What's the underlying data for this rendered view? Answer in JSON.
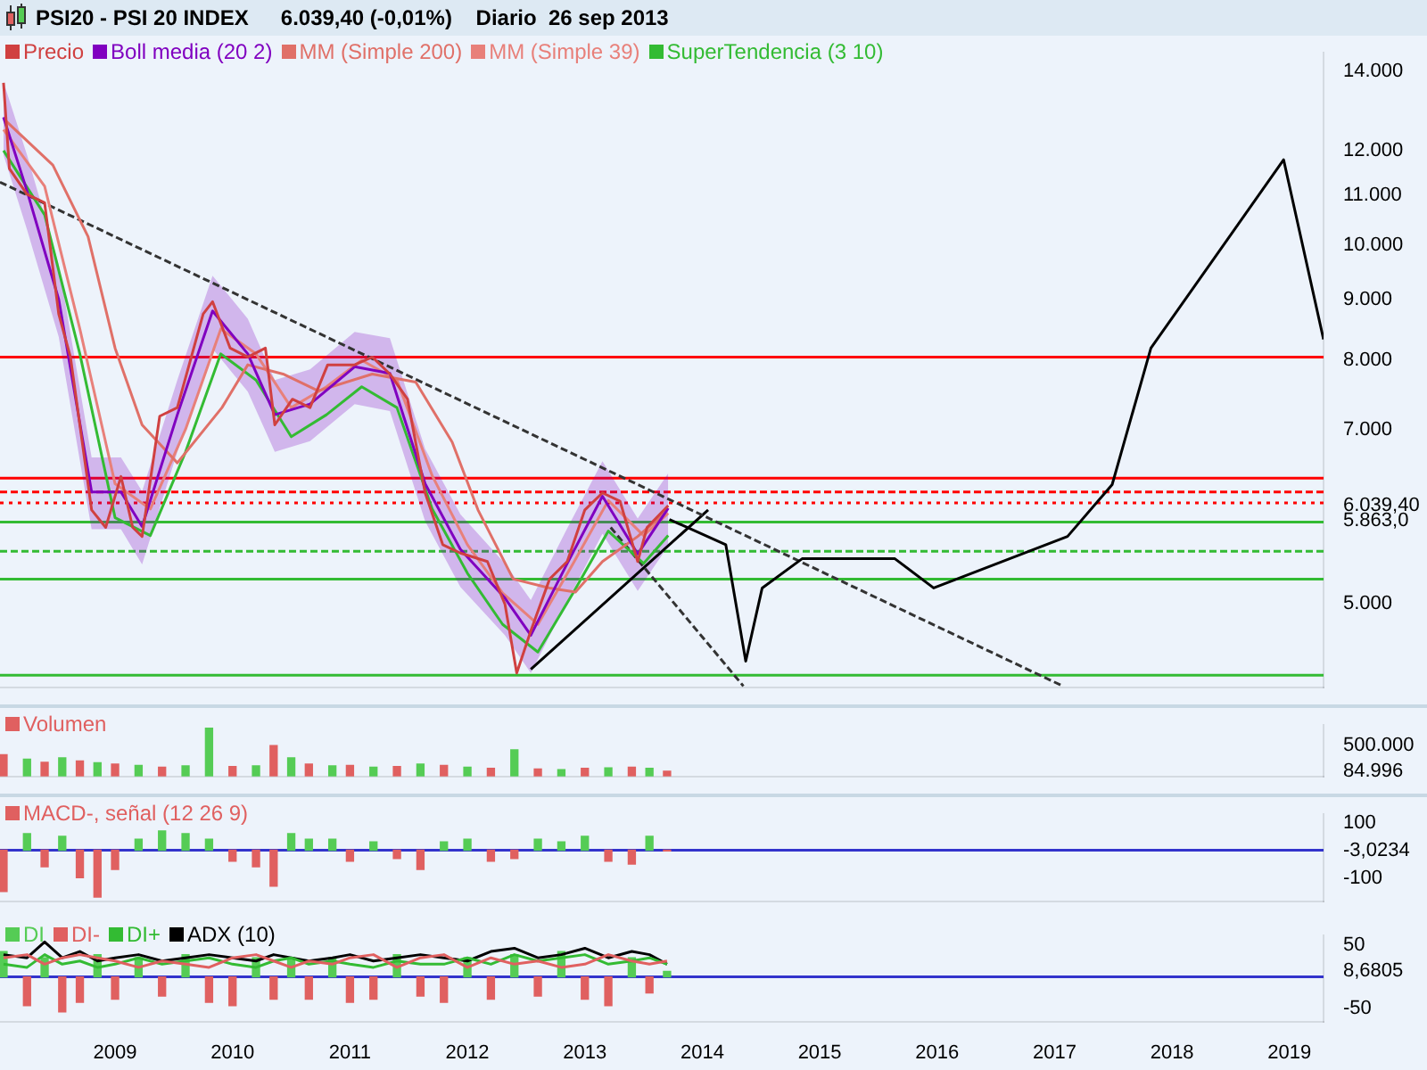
{
  "chart_data": [
    {
      "type": "line",
      "title": "PSI20 - PSI 20 INDEX",
      "subtitle": "6.039,40 (-0,01%)    Diario  26 sep 2013",
      "log": "y",
      "legend": "top left",
      "tick_labels": "y",
      "xlim": [
        2008.02,
        2019.29
      ],
      "ylim": [
        4250,
        14500
      ],
      "yticks": [
        {
          "value": 14000,
          "label": "14.000"
        },
        {
          "value": 12000,
          "label": "12.000"
        },
        {
          "value": 11000,
          "label": "11.000"
        },
        {
          "value": 10000,
          "label": "10.000"
        },
        {
          "value": 9000,
          "label": "9.000"
        },
        {
          "value": 8000,
          "label": "8.000"
        },
        {
          "value": 7000,
          "label": "7.000"
        },
        {
          "value": 6039.4,
          "label": "6.039,40"
        },
        {
          "value": 5863,
          "label": "5.863,0"
        },
        {
          "value": 5000,
          "label": "5.000"
        }
      ],
      "series": [
        {
          "name": "Precio",
          "color": "#d04040",
          "x": [
            2008.05,
            2008.1,
            2008.25,
            2008.4,
            2008.52,
            2008.62,
            2008.8,
            2008.92,
            2009.05,
            2009.15,
            2009.23,
            2009.38,
            2009.53,
            2009.75,
            2009.83,
            2009.98,
            2010.13,
            2010.28,
            2010.36,
            2010.51,
            2010.66,
            2010.81,
            2011.04,
            2011.19,
            2011.34,
            2011.49,
            2011.64,
            2011.79,
            2011.94,
            2012.17,
            2012.32,
            2012.42,
            2012.54,
            2012.7,
            2012.85,
            2013.0,
            2013.15,
            2013.3,
            2013.45,
            2013.53,
            2013.71
          ],
          "values": [
            13680,
            11590,
            11030,
            10850,
            8750,
            8050,
            5990,
            5790,
            6390,
            5790,
            5690,
            7180,
            7300,
            8750,
            8960,
            8190,
            8050,
            8190,
            7060,
            7420,
            7300,
            7930,
            7930,
            8050,
            7790,
            7420,
            6190,
            5600,
            5510,
            5420,
            4990,
            4370,
            4740,
            5240,
            5420,
            5990,
            6190,
            6090,
            5420,
            5790,
            6039.4
          ]
        },
        {
          "name": "Boll media (20 2)",
          "color": "#8000c0",
          "x": [
            2008.05,
            2008.25,
            2008.52,
            2008.8,
            2009.05,
            2009.23,
            2009.53,
            2009.83,
            2010.13,
            2010.36,
            2010.66,
            2011.04,
            2011.34,
            2011.64,
            2011.94,
            2012.32,
            2012.54,
            2012.85,
            2013.15,
            2013.45,
            2013.71
          ],
          "values": [
            12800,
            11100,
            9000,
            6200,
            6200,
            5800,
            7200,
            8800,
            8100,
            7200,
            7350,
            7900,
            7800,
            6300,
            5550,
            5050,
            4700,
            5400,
            6150,
            5500,
            6010
          ],
          "lower": [
            11900,
            10300,
            8370,
            5770,
            5770,
            5390,
            6700,
            8180,
            7530,
            6700,
            6840,
            7350,
            7250,
            5860,
            5160,
            4700,
            4370,
            5020,
            5720,
            5120,
            5590
          ],
          "upper": [
            13700,
            11900,
            9630,
            6630,
            6630,
            6210,
            7700,
            9420,
            8670,
            7700,
            7860,
            8450,
            8350,
            6740,
            5940,
            5400,
            5030,
            5780,
            6580,
            5890,
            6430
          ]
        },
        {
          "name": "MM (Simple 200)",
          "color": "#e07068",
          "x": [
            2008.07,
            2008.47,
            2008.77,
            2009.0,
            2009.23,
            2009.53,
            2009.91,
            2010.13,
            2010.43,
            2010.73,
            2011.19,
            2011.56,
            2011.87,
            2012.09,
            2012.39,
            2012.7,
            2012.92,
            2013.15,
            2013.45,
            2013.68
          ],
          "values": [
            12710,
            11670,
            10160,
            8190,
            7060,
            6560,
            7300,
            7930,
            7790,
            7540,
            7790,
            7670,
            6830,
            5990,
            5240,
            5150,
            5110,
            5420,
            5690,
            5950
          ]
        },
        {
          "name": "MM (Simple 39)",
          "color": "#e8807a",
          "x": [
            2008.05,
            2008.4,
            2008.7,
            2009.0,
            2009.3,
            2009.6,
            2009.9,
            2010.2,
            2010.5,
            2010.8,
            2011.1,
            2011.4,
            2011.7,
            2012.0,
            2012.3,
            2012.6,
            2012.9,
            2013.2,
            2013.5,
            2013.71
          ],
          "values": [
            12500,
            11200,
            8500,
            6300,
            6000,
            7000,
            8500,
            8100,
            7300,
            7600,
            8000,
            7700,
            6400,
            5600,
            5100,
            4800,
            5400,
            6100,
            5700,
            5950
          ]
        },
        {
          "name": "SuperTendencia (3 10)",
          "color": "#33bb33",
          "x": [
            2008.05,
            2008.4,
            2008.7,
            2009.0,
            2009.3,
            2009.6,
            2009.9,
            2010.2,
            2010.5,
            2010.8,
            2011.1,
            2011.4,
            2011.7,
            2012.0,
            2012.3,
            2012.6,
            2012.9,
            2013.2,
            2013.5,
            2013.71
          ],
          "values": [
            12000,
            10600,
            8100,
            5900,
            5700,
            6700,
            8100,
            7700,
            6900,
            7200,
            7600,
            7300,
            6000,
            5300,
            4800,
            4550,
            5100,
            5750,
            5400,
            5700
          ]
        },
        {
          "color": "#000000",
          "x": [
            2013.72,
            2014.2,
            2014.37,
            2014.51,
            2014.85,
            2015.64,
            2015.97,
            2017.11,
            2017.49,
            2017.82,
            2018.95,
            2019.29
          ],
          "values": [
            5880,
            5600,
            4470,
            5150,
            5450,
            5450,
            5150,
            5690,
            6290,
            8190,
            11790,
            8330
          ]
        },
        {
          "color": "#333333",
          "line_style": "dashed",
          "x": [
            2008.02,
            2017.07
          ],
          "values": [
            11290,
            4260
          ]
        },
        {
          "color": "#333333",
          "line_style": "dashed",
          "x": [
            2013.22,
            2014.35
          ],
          "values": [
            5790,
            4260
          ]
        },
        {
          "color": "#000000",
          "x": [
            2012.54,
            2014.05
          ],
          "values": [
            4400,
            5990
          ]
        }
      ],
      "ref_lines": [
        {
          "axis": "y",
          "value": 8050,
          "color": "#ff0000"
        },
        {
          "axis": "y",
          "value": 6370,
          "color": "#ff0000"
        },
        {
          "axis": "y",
          "value": 6200,
          "color": "#ff0000",
          "line_style": "dashed"
        },
        {
          "axis": "y",
          "value": 6070,
          "color": "#ff0000",
          "line_style": "dotted"
        },
        {
          "axis": "y",
          "value": 5850,
          "color": "#33bb33"
        },
        {
          "axis": "y",
          "value": 5530,
          "color": "#33bb33",
          "line_style": "dashed"
        },
        {
          "axis": "y",
          "value": 5240,
          "color": "#33bb33"
        },
        {
          "axis": "y",
          "value": 4350,
          "color": "#33bb33"
        }
      ]
    },
    {
      "type": "bar",
      "legend": "top left",
      "tick_labels": "y",
      "xlim": [
        2008.02,
        2019.29
      ],
      "ylim": [
        0,
        830000
      ],
      "yticks": [
        {
          "value": 84996,
          "label": "84.996"
        },
        {
          "value": 500000,
          "label": "500.000"
        }
      ],
      "x": [
        2008.05,
        2008.25,
        2008.4,
        2008.55,
        2008.7,
        2008.85,
        2009.0,
        2009.2,
        2009.4,
        2009.6,
        2009.8,
        2010.0,
        2010.2,
        2010.35,
        2010.5,
        2010.65,
        2010.85,
        2011.0,
        2011.2,
        2011.4,
        2011.6,
        2011.8,
        2012.0,
        2012.2,
        2012.4,
        2012.6,
        2012.8,
        2013.0,
        2013.2,
        2013.4,
        2013.55,
        2013.7
      ],
      "series": [
        {
          "name": "Volumen",
          "color": "#e06060",
          "colors": [
            "#e06060",
            "#55cc55",
            "#e06060",
            "#55cc55",
            "#e06060",
            "#55cc55",
            "#e06060",
            "#55cc55",
            "#e06060",
            "#55cc55",
            "#55cc55",
            "#e06060",
            "#55cc55",
            "#e06060",
            "#55cc55",
            "#e06060",
            "#55cc55",
            "#e06060",
            "#55cc55",
            "#e06060",
            "#55cc55",
            "#e06060",
            "#55cc55",
            "#e06060",
            "#55cc55",
            "#e06060",
            "#55cc55",
            "#e06060",
            "#55cc55",
            "#e06060",
            "#55cc55",
            "#e06060"
          ],
          "values": [
            350000,
            280000,
            230000,
            300000,
            250000,
            220000,
            200000,
            180000,
            150000,
            170000,
            780000,
            160000,
            170000,
            500000,
            300000,
            200000,
            170000,
            180000,
            150000,
            160000,
            200000,
            180000,
            150000,
            130000,
            430000,
            120000,
            110000,
            130000,
            140000,
            150000,
            130000,
            84996
          ]
        }
      ]
    },
    {
      "type": "bar",
      "legend": "top left",
      "tick_labels": "y",
      "xlim": [
        2008.02,
        2019.29
      ],
      "ylim": [
        -185,
        130
      ],
      "yticks": [
        100,
        {
          "value": -3.0234,
          "label": "-3,0234"
        },
        -100
      ],
      "x": [
        2008.05,
        2008.25,
        2008.4,
        2008.55,
        2008.7,
        2008.85,
        2009.0,
        2009.2,
        2009.4,
        2009.6,
        2009.8,
        2010.0,
        2010.2,
        2010.35,
        2010.5,
        2010.65,
        2010.85,
        2011.0,
        2011.2,
        2011.4,
        2011.6,
        2011.8,
        2012.0,
        2012.2,
        2012.4,
        2012.6,
        2012.8,
        2013.0,
        2013.2,
        2013.4,
        2013.55,
        2013.7
      ],
      "series": [
        {
          "name": "MACD-, señal (12 26 9)",
          "color": "#e06060",
          "colors": [
            "#e06060",
            "#55cc55",
            "#e06060",
            "#55cc55",
            "#e06060",
            "#e06060",
            "#e06060",
            "#55cc55",
            "#55cc55",
            "#55cc55",
            "#55cc55",
            "#e06060",
            "#e06060",
            "#e06060",
            "#55cc55",
            "#55cc55",
            "#55cc55",
            "#e06060",
            "#55cc55",
            "#e06060",
            "#e06060",
            "#55cc55",
            "#55cc55",
            "#e06060",
            "#e06060",
            "#55cc55",
            "#55cc55",
            "#55cc55",
            "#e06060",
            "#e06060",
            "#55cc55",
            "#e06060"
          ],
          "values": [
            -150,
            60,
            -60,
            50,
            -100,
            -170,
            -70,
            40,
            70,
            60,
            40,
            -40,
            -60,
            -130,
            60,
            40,
            40,
            -40,
            30,
            -30,
            -70,
            30,
            40,
            -40,
            -30,
            40,
            30,
            50,
            -40,
            -50,
            50,
            -3.0234
          ]
        }
      ],
      "ref_lines": [
        {
          "axis": "y",
          "value": 0,
          "color": "#3333cc"
        }
      ]
    },
    {
      "type": "bar",
      "legend": "top left",
      "xlim": [
        2008.02,
        2019.29
      ],
      "ylim": [
        -70,
        65
      ],
      "yticks": [
        50,
        {
          "value": 8.6805,
          "label": "8,6805"
        },
        -50
      ],
      "xticks": [
        2009,
        2010,
        2011,
        2012,
        2013,
        2014,
        2015,
        2016,
        2017,
        2018,
        2019
      ],
      "x": [
        2008.05,
        2008.25,
        2008.4,
        2008.55,
        2008.7,
        2008.85,
        2009.0,
        2009.2,
        2009.4,
        2009.6,
        2009.8,
        2010.0,
        2010.2,
        2010.35,
        2010.5,
        2010.65,
        2010.85,
        2011.0,
        2011.2,
        2011.4,
        2011.6,
        2011.8,
        2012.0,
        2012.2,
        2012.4,
        2012.6,
        2012.8,
        2013.0,
        2013.2,
        2013.4,
        2013.55,
        2013.7
      ],
      "series": [
        {
          "name": "DI",
          "color": "#55cc55",
          "colors": [
            "#55cc55",
            "#e06060",
            "#55cc55",
            "#e06060",
            "#e06060",
            "#55cc55",
            "#e06060",
            "#55cc55",
            "#e06060",
            "#55cc55",
            "#e06060",
            "#e06060",
            "#55cc55",
            "#e06060",
            "#55cc55",
            "#e06060",
            "#55cc55",
            "#e06060",
            "#e06060",
            "#55cc55",
            "#e06060",
            "#e06060",
            "#55cc55",
            "#e06060",
            "#55cc55",
            "#e06060",
            "#55cc55",
            "#e06060",
            "#e06060",
            "#55cc55",
            "#e06060",
            "#55cc55"
          ],
          "values": [
            40,
            -45,
            30,
            -55,
            -40,
            35,
            -35,
            30,
            -30,
            35,
            -40,
            -45,
            30,
            -35,
            30,
            -35,
            30,
            -40,
            -35,
            35,
            -30,
            -40,
            30,
            -35,
            35,
            -30,
            40,
            -35,
            -45,
            30,
            -25,
            8.6805
          ]
        },
        {
          "name": "DI-",
          "type": "line",
          "color": "#e06060",
          "values": [
            30,
            35,
            20,
            30,
            35,
            30,
            25,
            15,
            25,
            20,
            15,
            30,
            35,
            25,
            15,
            25,
            20,
            30,
            35,
            15,
            30,
            35,
            15,
            30,
            20,
            25,
            15,
            20,
            35,
            25,
            20,
            25
          ]
        },
        {
          "name": "DI+",
          "type": "line",
          "color": "#33bb33",
          "values": [
            20,
            15,
            35,
            20,
            25,
            15,
            20,
            30,
            20,
            25,
            30,
            20,
            15,
            25,
            30,
            20,
            25,
            20,
            15,
            25,
            20,
            20,
            30,
            20,
            35,
            25,
            30,
            35,
            20,
            25,
            30,
            20
          ]
        },
        {
          "name": "ADX (10)",
          "type": "line",
          "color": "#000000",
          "values": [
            35,
            30,
            55,
            30,
            40,
            25,
            30,
            35,
            25,
            30,
            35,
            30,
            25,
            35,
            30,
            25,
            30,
            35,
            25,
            30,
            35,
            30,
            25,
            40,
            45,
            30,
            35,
            45,
            30,
            40,
            35,
            20
          ]
        }
      ],
      "ref_lines": [
        {
          "axis": "y",
          "value": 0,
          "color": "#3333cc"
        }
      ]
    }
  ]
}
